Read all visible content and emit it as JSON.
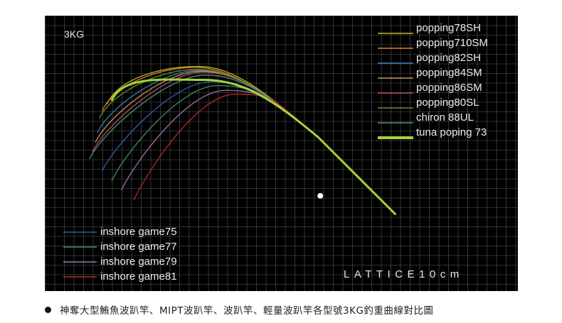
{
  "caption": "神奪大型鮪魚波趴竿、MIPT波趴竿、波趴竿、輕量波趴竿各型號3KG釣重曲線對比圖",
  "chart_data": {
    "type": "line",
    "title": "3KG",
    "lattice_label": "LATTICE10cm",
    "grid": true,
    "background": "#000000",
    "grid_color": "#5a5a5a",
    "legend_top_right": [
      "popping78SH",
      "popping710SM",
      "popping82SH",
      "popping84SM",
      "popping86SM",
      "popping80SL",
      "chiron 88UL",
      "tuna poping 73"
    ],
    "legend_bottom_left": [
      "inshore game75",
      "inshore game77",
      "inshore game79",
      "inshore game81"
    ],
    "units": "lattice squares (10cm), origin at rod butt, y up",
    "series": [
      {
        "name": "popping78SH",
        "color": "#c7b832",
        "width": 1.4,
        "tip": [
          5.0,
          18.5
        ],
        "peak": [
          14.5,
          22.4
        ]
      },
      {
        "name": "popping710SM",
        "color": "#d3891f",
        "width": 1.4,
        "tip": [
          4.5,
          17.8
        ],
        "peak": [
          14.2,
          22.3
        ]
      },
      {
        "name": "popping82SH",
        "color": "#3b7fb8",
        "width": 1.4,
        "tip": [
          4.0,
          15.5
        ],
        "peak": [
          14.6,
          22.0
        ]
      },
      {
        "name": "popping84SM",
        "color": "#c79a5a",
        "width": 1.4,
        "tip": [
          3.8,
          14.5
        ],
        "peak": [
          14.8,
          21.9
        ]
      },
      {
        "name": "popping86SM",
        "color": "#b9506a",
        "width": 1.4,
        "tip": [
          3.5,
          13.5
        ],
        "peak": [
          15.0,
          21.8
        ]
      },
      {
        "name": "popping80SL",
        "color": "#6d8c2a",
        "width": 1.4,
        "tip": [
          4.2,
          17.0
        ],
        "peak": [
          14.4,
          22.1
        ]
      },
      {
        "name": "chiron 88UL",
        "color": "#4f9480",
        "width": 1.4,
        "tip": [
          3.2,
          12.8
        ],
        "peak": [
          15.2,
          21.5
        ]
      },
      {
        "name": "tuna poping 73",
        "color": "#a6d23c",
        "width": 3.0,
        "tip": [
          5.5,
          18.9
        ],
        "peak": [
          15.0,
          21.0
        ]
      },
      {
        "name": "inshore game75",
        "color": "#2f5fa8",
        "width": 1.4,
        "tip": [
          4.5,
          11.5
        ],
        "peak": [
          15.8,
          20.8
        ]
      },
      {
        "name": "inshore game77",
        "color": "#3f8f6a",
        "width": 1.4,
        "tip": [
          5.5,
          10.5
        ],
        "peak": [
          16.5,
          20.4
        ]
      },
      {
        "name": "inshore game79",
        "color": "#9a78b2",
        "width": 1.4,
        "tip": [
          6.5,
          9.5
        ],
        "peak": [
          17.3,
          19.9
        ]
      },
      {
        "name": "inshore game81",
        "color": "#b32a2a",
        "width": 1.4,
        "tip": [
          7.8,
          8.5
        ],
        "peak": [
          18.3,
          19.5
        ]
      }
    ],
    "handle_end": [
      35.0,
      7.0
    ],
    "reel_seat": [
      27.0,
      15.0
    ]
  }
}
